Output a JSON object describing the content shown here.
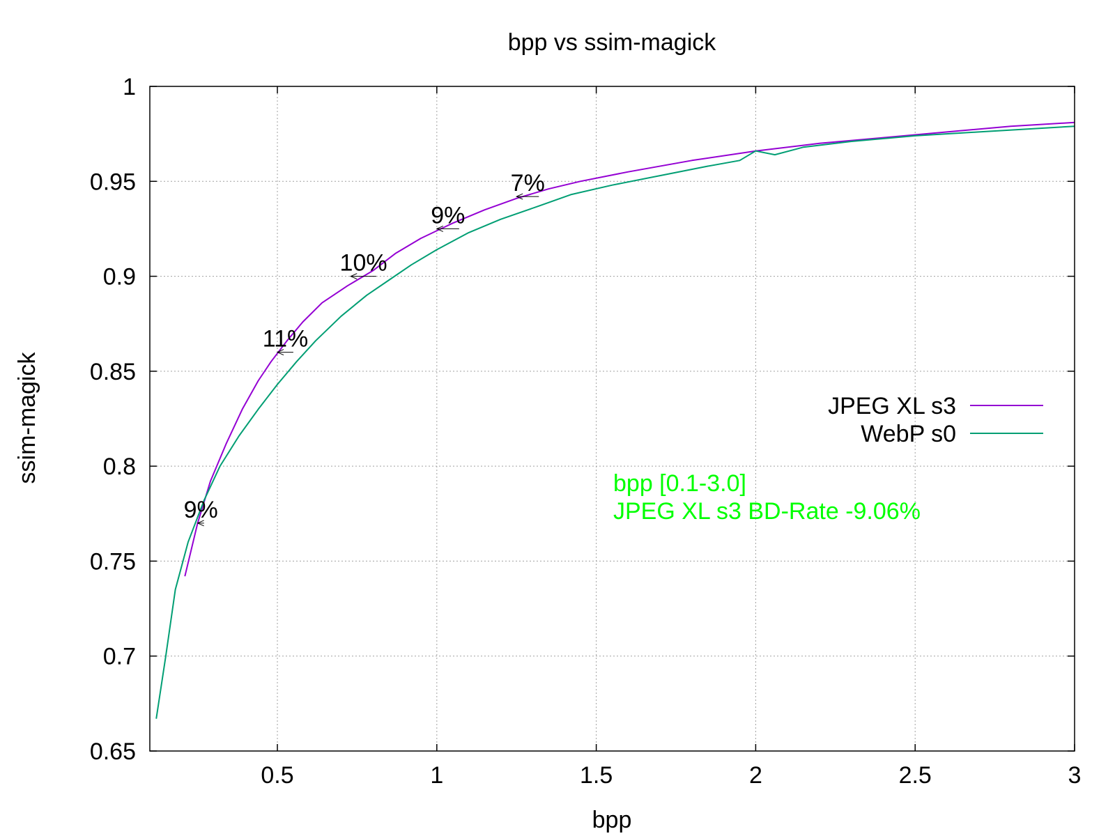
{
  "chart_data": {
    "type": "line",
    "title": "bpp vs ssim-magick",
    "xlabel": "bpp",
    "ylabel": "ssim-magick",
    "xlim": [
      0.1,
      3.0
    ],
    "ylim": [
      0.65,
      1.0
    ],
    "x_ticks": [
      "0.5",
      "1",
      "1.5",
      "2",
      "2.5",
      "3"
    ],
    "x_tick_values": [
      0.5,
      1,
      1.5,
      2,
      2.5,
      3
    ],
    "y_ticks": [
      "0.65",
      "0.7",
      "0.75",
      "0.8",
      "0.85",
      "0.9",
      "0.95",
      "1"
    ],
    "y_tick_values": [
      0.65,
      0.7,
      0.75,
      0.8,
      0.85,
      0.9,
      0.95,
      1.0
    ],
    "grid": true,
    "legend_position": "right",
    "series": [
      {
        "name": "JPEG XL s3",
        "color": "#9400d3",
        "points": [
          [
            0.21,
            0.742
          ],
          [
            0.25,
            0.77
          ],
          [
            0.29,
            0.792
          ],
          [
            0.34,
            0.812
          ],
          [
            0.39,
            0.83
          ],
          [
            0.44,
            0.845
          ],
          [
            0.48,
            0.855
          ],
          [
            0.53,
            0.866
          ],
          [
            0.58,
            0.876
          ],
          [
            0.64,
            0.886
          ],
          [
            0.72,
            0.895
          ],
          [
            0.8,
            0.903
          ],
          [
            0.87,
            0.912
          ],
          [
            0.95,
            0.92
          ],
          [
            1.05,
            0.928
          ],
          [
            1.15,
            0.935
          ],
          [
            1.25,
            0.941
          ],
          [
            1.35,
            0.946
          ],
          [
            1.45,
            0.95
          ],
          [
            1.6,
            0.955
          ],
          [
            1.8,
            0.961
          ],
          [
            2.0,
            0.966
          ],
          [
            2.2,
            0.97
          ],
          [
            2.4,
            0.973
          ],
          [
            2.6,
            0.976
          ],
          [
            2.8,
            0.979
          ],
          [
            3.0,
            0.981
          ]
        ]
      },
      {
        "name": "WebP s0",
        "color": "#009e73",
        "points": [
          [
            0.12,
            0.667
          ],
          [
            0.15,
            0.7
          ],
          [
            0.18,
            0.735
          ],
          [
            0.22,
            0.76
          ],
          [
            0.27,
            0.782
          ],
          [
            0.32,
            0.8
          ],
          [
            0.38,
            0.816
          ],
          [
            0.44,
            0.83
          ],
          [
            0.5,
            0.843
          ],
          [
            0.56,
            0.855
          ],
          [
            0.62,
            0.866
          ],
          [
            0.7,
            0.879
          ],
          [
            0.78,
            0.89
          ],
          [
            0.85,
            0.898
          ],
          [
            0.92,
            0.906
          ],
          [
            1.0,
            0.914
          ],
          [
            1.1,
            0.923
          ],
          [
            1.2,
            0.93
          ],
          [
            1.32,
            0.937
          ],
          [
            1.42,
            0.943
          ],
          [
            1.55,
            0.948
          ],
          [
            1.7,
            0.953
          ],
          [
            1.85,
            0.958
          ],
          [
            1.95,
            0.961
          ],
          [
            2.0,
            0.966
          ],
          [
            2.06,
            0.964
          ],
          [
            2.15,
            0.968
          ],
          [
            2.3,
            0.971
          ],
          [
            2.5,
            0.974
          ],
          [
            2.7,
            0.976
          ],
          [
            3.0,
            0.979
          ]
        ]
      }
    ],
    "gain_labels": [
      {
        "text": "9%",
        "x": 0.27,
        "y": 0.77,
        "x_to": 0.25
      },
      {
        "text": "11%",
        "x": 0.55,
        "y": 0.86,
        "x_to": 0.5
      },
      {
        "text": "10%",
        "x": 0.81,
        "y": 0.9,
        "x_to": 0.73
      },
      {
        "text": "9%",
        "x": 1.07,
        "y": 0.925,
        "x_to": 1.0
      },
      {
        "text": "7%",
        "x": 1.32,
        "y": 0.942,
        "x_to": 1.25
      }
    ],
    "annotation_lines": [
      "bpp [0.1-3.0]",
      "JPEG XL s3 BD-Rate -9.06%"
    ],
    "annotation_color": "#00ff00"
  }
}
